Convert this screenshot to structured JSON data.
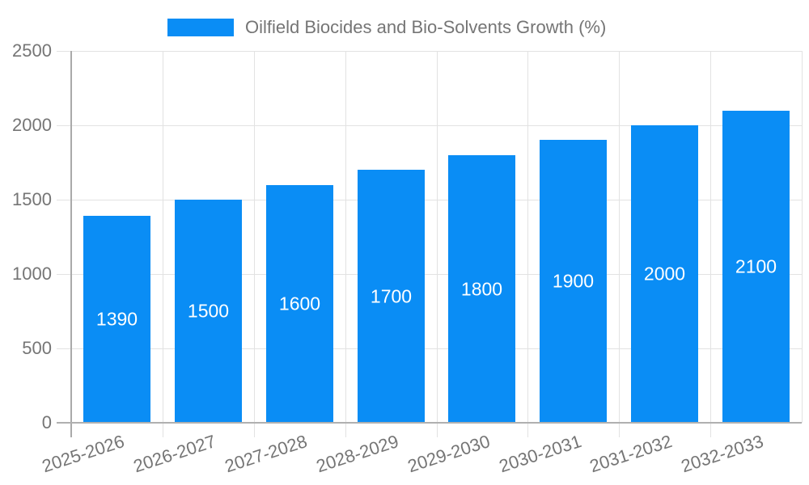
{
  "chart_data": {
    "type": "bar",
    "title": "Oilfield Biocides and Bio-Solvents Growth (%)",
    "legend": [
      "Oilfield Biocides and Bio-Solvents Growth (%)"
    ],
    "legend_position": "top",
    "categories": [
      "2025-2026",
      "2026-2027",
      "2027-2028",
      "2028-2029",
      "2029-2030",
      "2030-2031",
      "2031-2032",
      "2032-2033"
    ],
    "values": [
      1390,
      1500,
      1600,
      1700,
      1800,
      1900,
      2000,
      2100
    ],
    "xlabel": "",
    "ylabel": "",
    "ylim": [
      0,
      2500
    ],
    "yticks": [
      0,
      500,
      1000,
      1500,
      2000,
      2500
    ],
    "grid": true,
    "value_label_position": "inside-center",
    "colors": {
      "bar": "#0a8df5",
      "value_label": "#ffffff",
      "axis_text": "#757575",
      "gridline": "#e2e2e2",
      "axis_line": "#aaaaaa",
      "baseline": "#b0b0b0",
      "background": "#ffffff"
    }
  }
}
